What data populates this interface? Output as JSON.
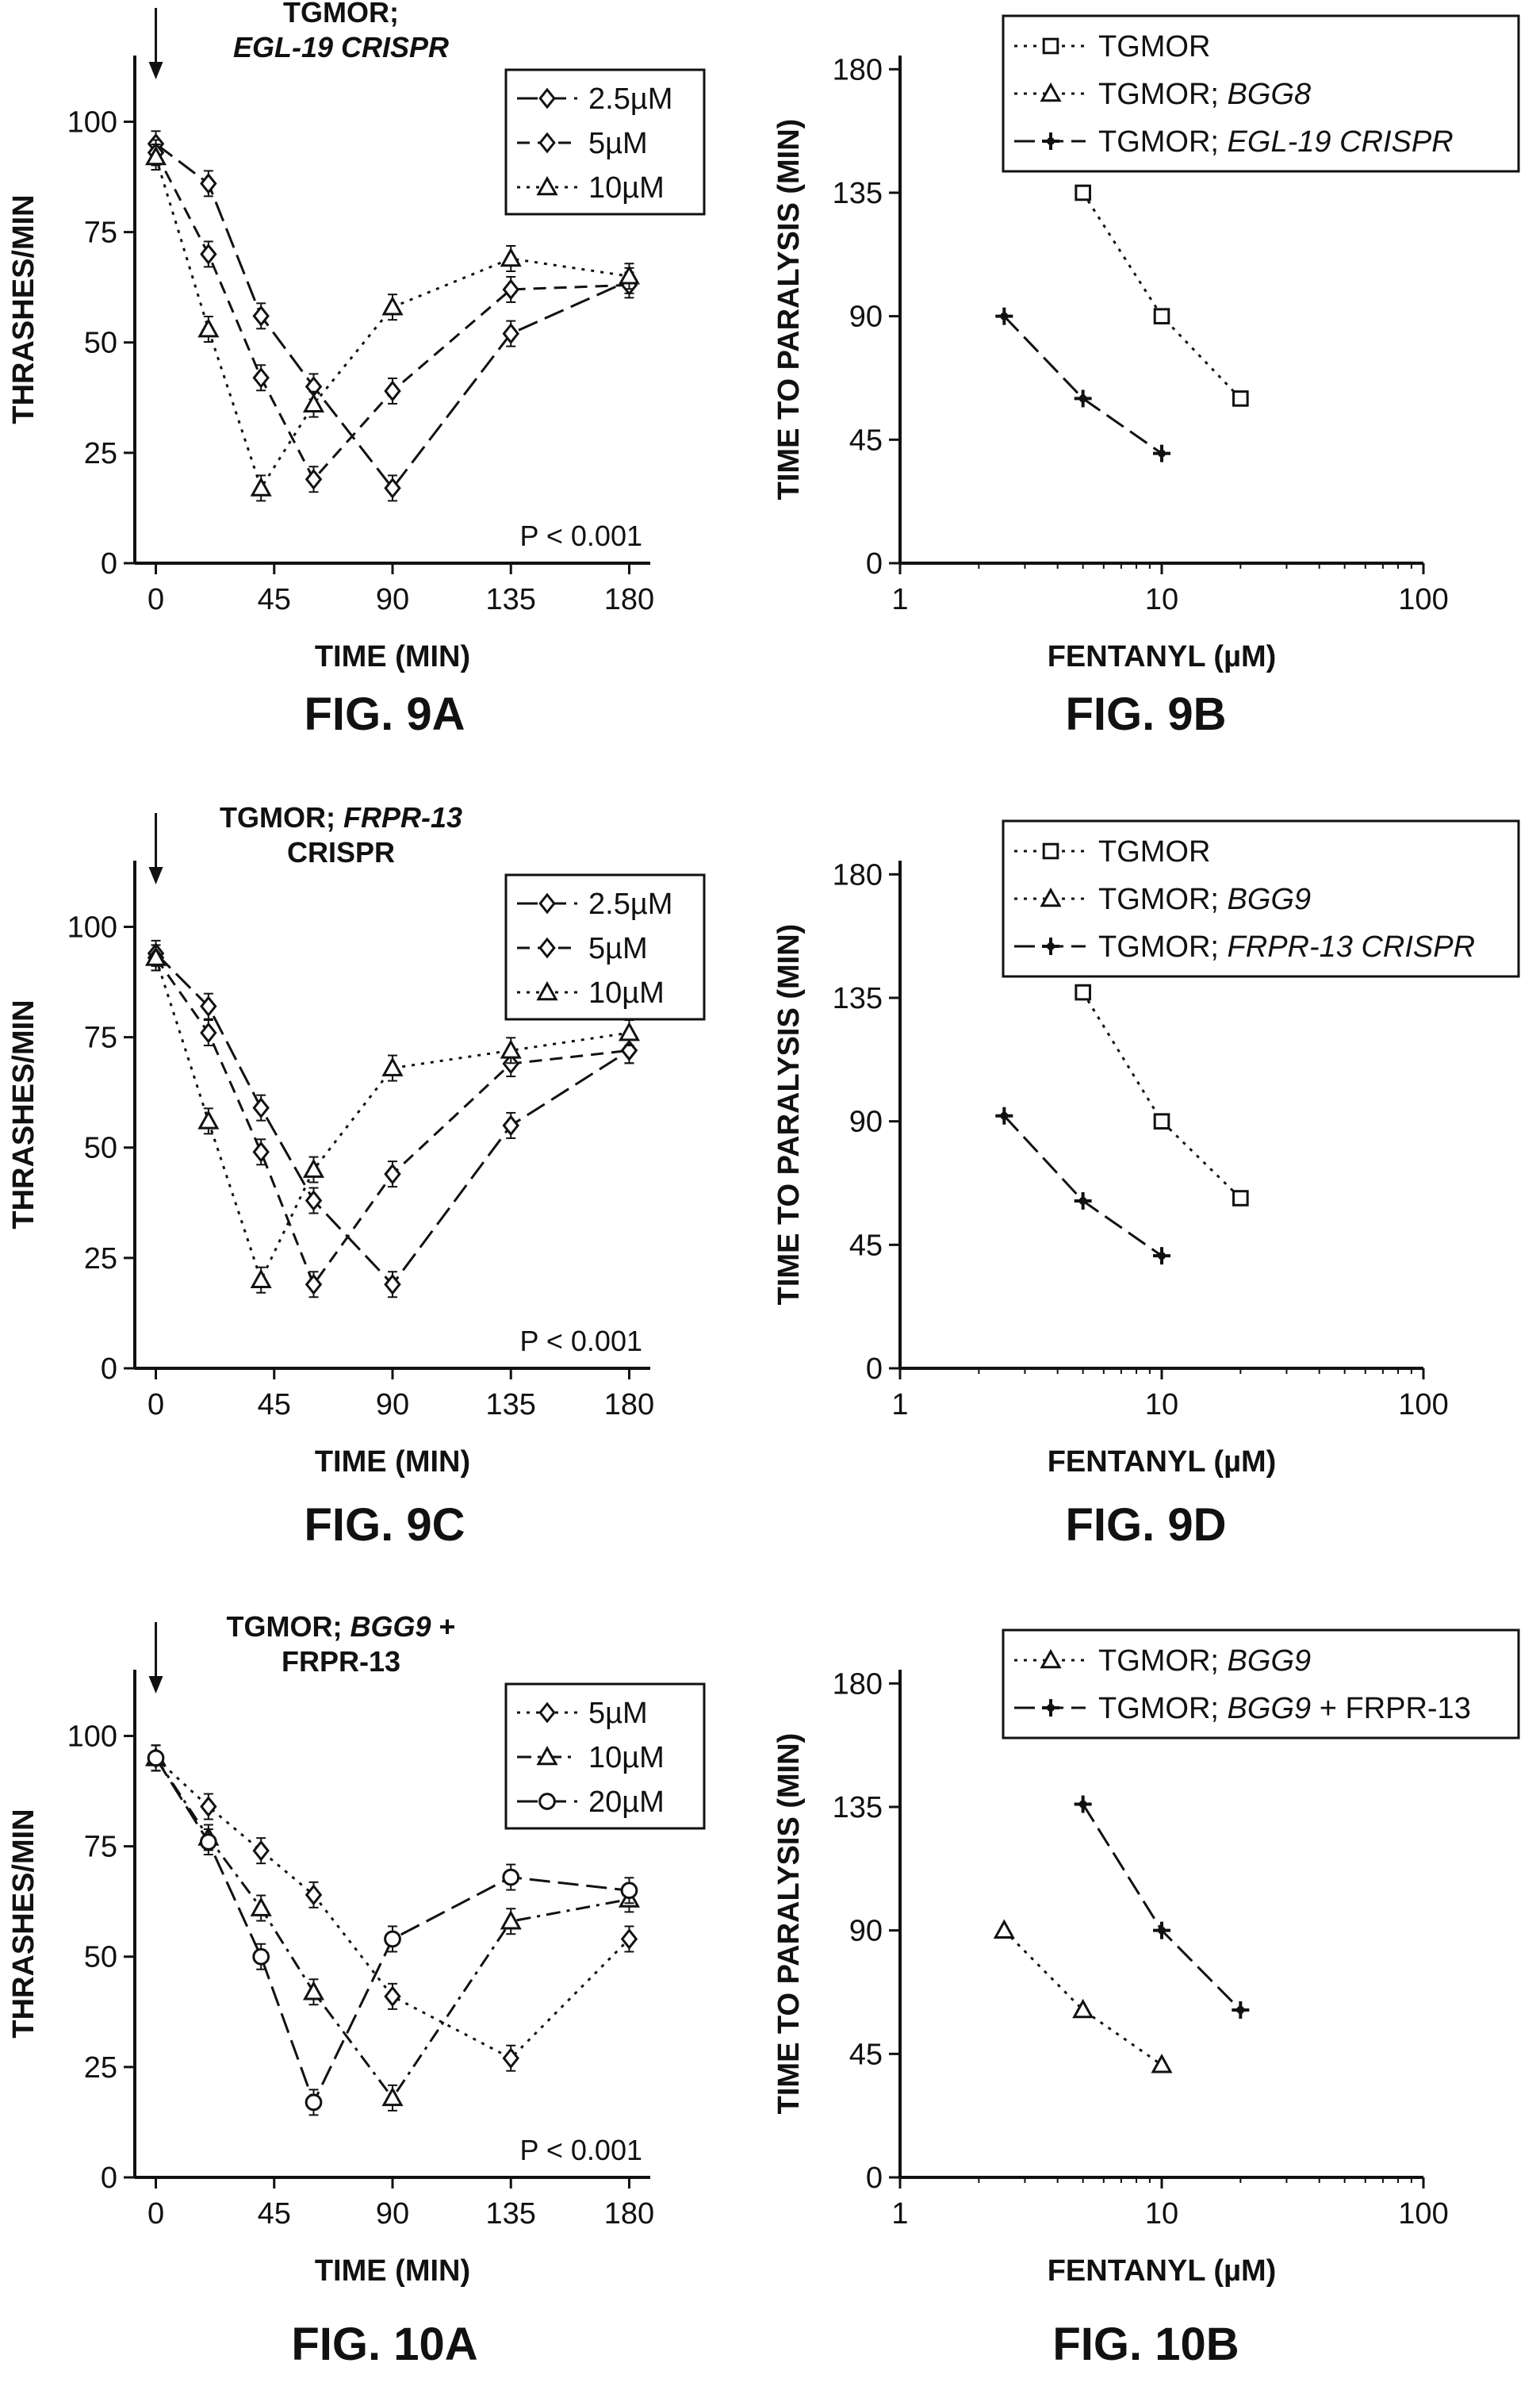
{
  "chart_data": [
    {
      "id": "fig9a",
      "type": "line",
      "figure_label": "FIG. 9A",
      "title_lines": [
        [
          {
            "t": "TGMOR;",
            "i": false
          }
        ],
        [
          {
            "t": "EGL-19 CRISPR",
            "i": true
          }
        ]
      ],
      "xlabel": "TIME (MIN)",
      "ylabel": "THRASHES/MIN",
      "xscale": "linear",
      "xlim": [
        -8,
        188
      ],
      "ylim": [
        0,
        115
      ],
      "xticks": [
        0,
        45,
        90,
        135,
        180
      ],
      "xtick_labels": [
        "0",
        "45",
        "90",
        "135",
        "180"
      ],
      "yticks": [
        0,
        25,
        50,
        75,
        100
      ],
      "ytick_labels": [
        "0",
        "25",
        "50",
        "75",
        "100"
      ],
      "arrow_at_x": 0,
      "annotation": "P < 0.001",
      "legend_position": "top-right",
      "series": [
        {
          "name": "2.5µM",
          "marker": "diamond",
          "dash": "long",
          "x": [
            0,
            20,
            40,
            60,
            90,
            135,
            180
          ],
          "y": [
            95,
            86,
            56,
            40,
            17,
            52,
            64
          ]
        },
        {
          "name": "5µM",
          "marker": "diamond",
          "dash": "medium",
          "x": [
            0,
            20,
            40,
            60,
            90,
            135,
            180
          ],
          "y": [
            93,
            70,
            42,
            19,
            39,
            62,
            63
          ]
        },
        {
          "name": "10µM",
          "marker": "triangle",
          "dash": "dotted",
          "x": [
            0,
            20,
            40,
            60,
            90,
            135,
            180
          ],
          "y": [
            92,
            53,
            17,
            36,
            58,
            69,
            65
          ]
        }
      ]
    },
    {
      "id": "fig9b",
      "type": "line",
      "figure_label": "FIG. 9B",
      "xlabel": "FENTANYL (µM)",
      "ylabel": "TIME TO PARALYSIS (MIN)",
      "xscale": "log",
      "xlim": [
        1,
        100
      ],
      "ylim": [
        0,
        185
      ],
      "xticks": [
        1,
        10,
        100
      ],
      "xtick_labels": [
        "1",
        "10",
        "100"
      ],
      "yticks": [
        0,
        45,
        90,
        135,
        180
      ],
      "ytick_labels": [
        "0",
        "45",
        "90",
        "135",
        "180"
      ],
      "legend_position": "top",
      "series": [
        {
          "name_parts": [
            {
              "t": "TGMOR",
              "i": false
            }
          ],
          "marker": "square",
          "dash": "dotted",
          "x": [
            5,
            10,
            20
          ],
          "y": [
            135,
            90,
            60
          ]
        },
        {
          "name_parts": [
            {
              "t": "TGMOR; ",
              "i": false
            },
            {
              "t": "BGG8",
              "i": true
            }
          ],
          "marker": "triangle",
          "dash": "dotted",
          "x": [],
          "y": []
        },
        {
          "name_parts": [
            {
              "t": "TGMOR; ",
              "i": false
            },
            {
              "t": "EGL-19 CRISPR",
              "i": true
            }
          ],
          "marker": "plus",
          "dash": "long",
          "x": [
            2.5,
            5,
            10
          ],
          "y": [
            90,
            60,
            40
          ]
        }
      ]
    },
    {
      "id": "fig9c",
      "type": "line",
      "figure_label": "FIG. 9C",
      "title_lines": [
        [
          {
            "t": "TGMOR; ",
            "i": false
          },
          {
            "t": "FRPR-13",
            "i": true
          }
        ],
        [
          {
            "t": "CRISPR",
            "i": false
          }
        ]
      ],
      "xlabel": "TIME (MIN)",
      "ylabel": "THRASHES/MIN",
      "xscale": "linear",
      "xlim": [
        -8,
        188
      ],
      "ylim": [
        0,
        115
      ],
      "xticks": [
        0,
        45,
        90,
        135,
        180
      ],
      "xtick_labels": [
        "0",
        "45",
        "90",
        "135",
        "180"
      ],
      "yticks": [
        0,
        25,
        50,
        75,
        100
      ],
      "ytick_labels": [
        "0",
        "25",
        "50",
        "75",
        "100"
      ],
      "arrow_at_x": 0,
      "annotation": "P < 0.001",
      "legend_position": "top-right",
      "series": [
        {
          "name": "2.5µM",
          "marker": "diamond",
          "dash": "long",
          "x": [
            0,
            20,
            40,
            60,
            90,
            135,
            180
          ],
          "y": [
            94,
            82,
            59,
            38,
            19,
            55,
            72
          ]
        },
        {
          "name": "5µM",
          "marker": "diamond",
          "dash": "medium",
          "x": [
            0,
            20,
            40,
            60,
            90,
            135,
            180
          ],
          "y": [
            93,
            76,
            49,
            19,
            44,
            69,
            72
          ]
        },
        {
          "name": "10µM",
          "marker": "triangle",
          "dash": "dotted",
          "x": [
            0,
            20,
            40,
            60,
            90,
            135,
            180
          ],
          "y": [
            93,
            56,
            20,
            45,
            68,
            72,
            76
          ]
        }
      ]
    },
    {
      "id": "fig9d",
      "type": "line",
      "figure_label": "FIG. 9D",
      "xlabel": "FENTANYL (µM)",
      "ylabel": "TIME TO PARALYSIS (MIN)",
      "xscale": "log",
      "xlim": [
        1,
        100
      ],
      "ylim": [
        0,
        185
      ],
      "xticks": [
        1,
        10,
        100
      ],
      "xtick_labels": [
        "1",
        "10",
        "100"
      ],
      "yticks": [
        0,
        45,
        90,
        135,
        180
      ],
      "ytick_labels": [
        "0",
        "45",
        "90",
        "135",
        "180"
      ],
      "legend_position": "top",
      "series": [
        {
          "name_parts": [
            {
              "t": "TGMOR",
              "i": false
            }
          ],
          "marker": "square",
          "dash": "dotted",
          "x": [
            5,
            10,
            20
          ],
          "y": [
            137,
            90,
            62
          ]
        },
        {
          "name_parts": [
            {
              "t": "TGMOR; ",
              "i": false
            },
            {
              "t": "BGG9",
              "i": true
            }
          ],
          "marker": "triangle",
          "dash": "dotted",
          "x": [],
          "y": []
        },
        {
          "name_parts": [
            {
              "t": "TGMOR; ",
              "i": false
            },
            {
              "t": "FRPR-13 CRISPR",
              "i": true
            }
          ],
          "marker": "plus",
          "dash": "long",
          "x": [
            2.5,
            5,
            10
          ],
          "y": [
            92,
            61,
            41
          ]
        }
      ]
    },
    {
      "id": "fig10a",
      "type": "line",
      "figure_label": "FIG. 10A",
      "title_lines": [
        [
          {
            "t": "TGMOR; ",
            "i": false
          },
          {
            "t": "BGG9",
            "i": true
          },
          {
            "t": " +",
            "i": false
          }
        ],
        [
          {
            "t": "FRPR-13",
            "i": false
          }
        ]
      ],
      "xlabel": "TIME (MIN)",
      "ylabel": "THRASHES/MIN",
      "xscale": "linear",
      "xlim": [
        -8,
        188
      ],
      "ylim": [
        0,
        115
      ],
      "xticks": [
        0,
        45,
        90,
        135,
        180
      ],
      "xtick_labels": [
        "0",
        "45",
        "90",
        "135",
        "180"
      ],
      "yticks": [
        0,
        25,
        50,
        75,
        100
      ],
      "ytick_labels": [
        "0",
        "25",
        "50",
        "75",
        "100"
      ],
      "arrow_at_x": 0,
      "annotation": "P < 0.001",
      "legend_position": "top-right",
      "series": [
        {
          "name": "5µM",
          "marker": "diamond",
          "dash": "dotted",
          "x": [
            0,
            20,
            40,
            60,
            90,
            135,
            180
          ],
          "y": [
            95,
            84,
            74,
            64,
            41,
            27,
            54
          ]
        },
        {
          "name": "10µM",
          "marker": "triangle",
          "dash": "dashdot",
          "x": [
            0,
            20,
            40,
            60,
            90,
            135,
            180
          ],
          "y": [
            95,
            77,
            61,
            42,
            18,
            58,
            63
          ]
        },
        {
          "name": "20µM",
          "marker": "circle",
          "dash": "long",
          "x": [
            0,
            20,
            40,
            60,
            90,
            135,
            180
          ],
          "y": [
            95,
            76,
            50,
            17,
            54,
            68,
            65
          ]
        }
      ]
    },
    {
      "id": "fig10b",
      "type": "line",
      "figure_label": "FIG. 10B",
      "xlabel": "FENTANYL (µM)",
      "ylabel": "TIME TO PARALYSIS (MIN)",
      "xscale": "log",
      "xlim": [
        1,
        100
      ],
      "ylim": [
        0,
        185
      ],
      "xticks": [
        1,
        10,
        100
      ],
      "xtick_labels": [
        "1",
        "10",
        "100"
      ],
      "yticks": [
        0,
        45,
        90,
        135,
        180
      ],
      "ytick_labels": [
        "0",
        "45",
        "90",
        "135",
        "180"
      ],
      "legend_position": "top",
      "series": [
        {
          "name_parts": [
            {
              "t": "TGMOR; ",
              "i": false
            },
            {
              "t": "BGG9",
              "i": true
            }
          ],
          "marker": "triangle",
          "dash": "dotted",
          "x": [
            2.5,
            5,
            10
          ],
          "y": [
            90,
            61,
            41
          ]
        },
        {
          "name_parts": [
            {
              "t": "TGMOR; ",
              "i": false
            },
            {
              "t": "BGG9",
              "i": true
            },
            {
              "t": " + FRPR-13",
              "i": false
            }
          ],
          "marker": "plus",
          "dash": "long",
          "x": [
            5,
            10,
            20
          ],
          "y": [
            136,
            90,
            61
          ]
        }
      ]
    }
  ]
}
